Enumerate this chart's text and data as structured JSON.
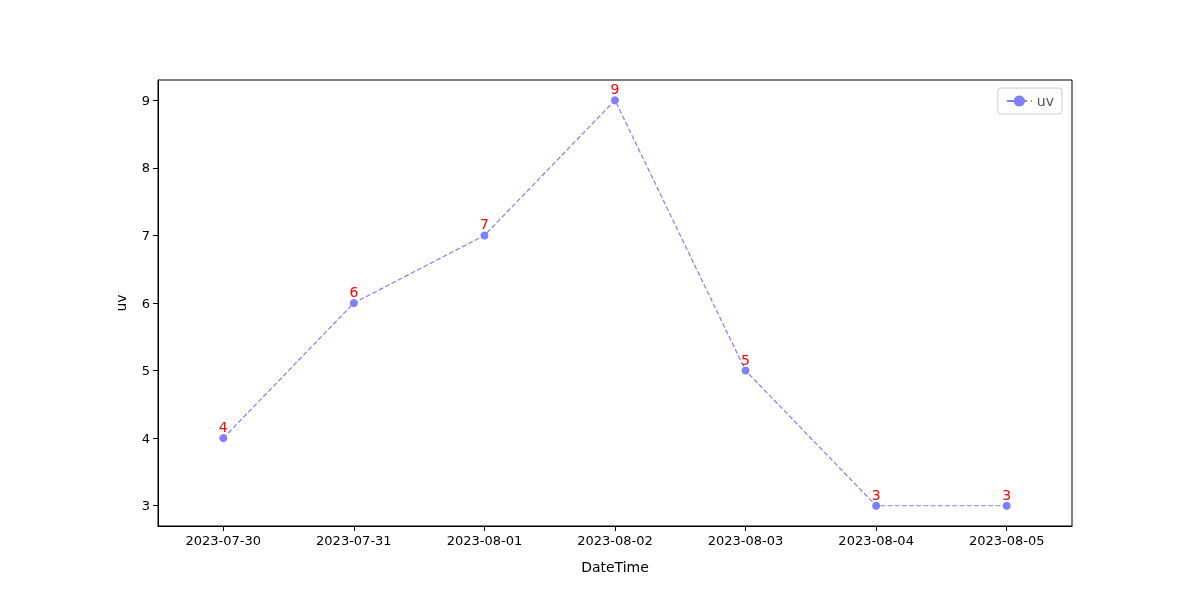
{
  "chart_data": {
    "type": "line",
    "xlabel": "DateTime",
    "ylabel": "uv",
    "categories": [
      "2023-07-30",
      "2023-07-31",
      "2023-08-01",
      "2023-08-02",
      "2023-08-03",
      "2023-08-04",
      "2023-08-05"
    ],
    "series": [
      {
        "name": "uv",
        "color": "#7f7fff",
        "values": [
          4,
          6,
          7,
          9,
          5,
          3,
          3
        ]
      }
    ],
    "ylim": [
      2.7,
      9.3
    ],
    "yticks": [
      3,
      4,
      5,
      6,
      7,
      8,
      9
    ],
    "grid": false,
    "legend": "top right",
    "marker": "circle",
    "line_style": "dashed",
    "data_labels": true
  }
}
